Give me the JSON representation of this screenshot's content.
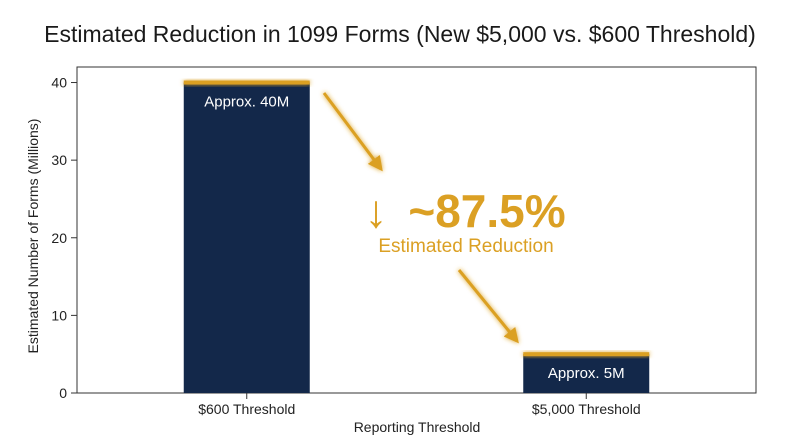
{
  "chart_data": {
    "type": "bar",
    "title": "Estimated Reduction in 1099 Forms (New $5,000 vs. $600 Threshold)",
    "xlabel": "Reporting Threshold",
    "ylabel": "Estimated Number of Forms (Millions)",
    "categories": [
      "$600 Threshold",
      "$5,000 Threshold"
    ],
    "values": [
      40,
      5
    ],
    "data_labels": [
      "Approx. 40M",
      "Approx. 5M"
    ],
    "ylim": [
      0,
      42
    ],
    "yticks": [
      0,
      10,
      20,
      30,
      40
    ],
    "grid": false,
    "annotation": {
      "value": "~87.5%",
      "arrow_glyph": "↓",
      "text": "Estimated Reduction"
    }
  },
  "colors": {
    "bar": "#13284a",
    "accent": "#dba024",
    "axis": "#333333"
  }
}
